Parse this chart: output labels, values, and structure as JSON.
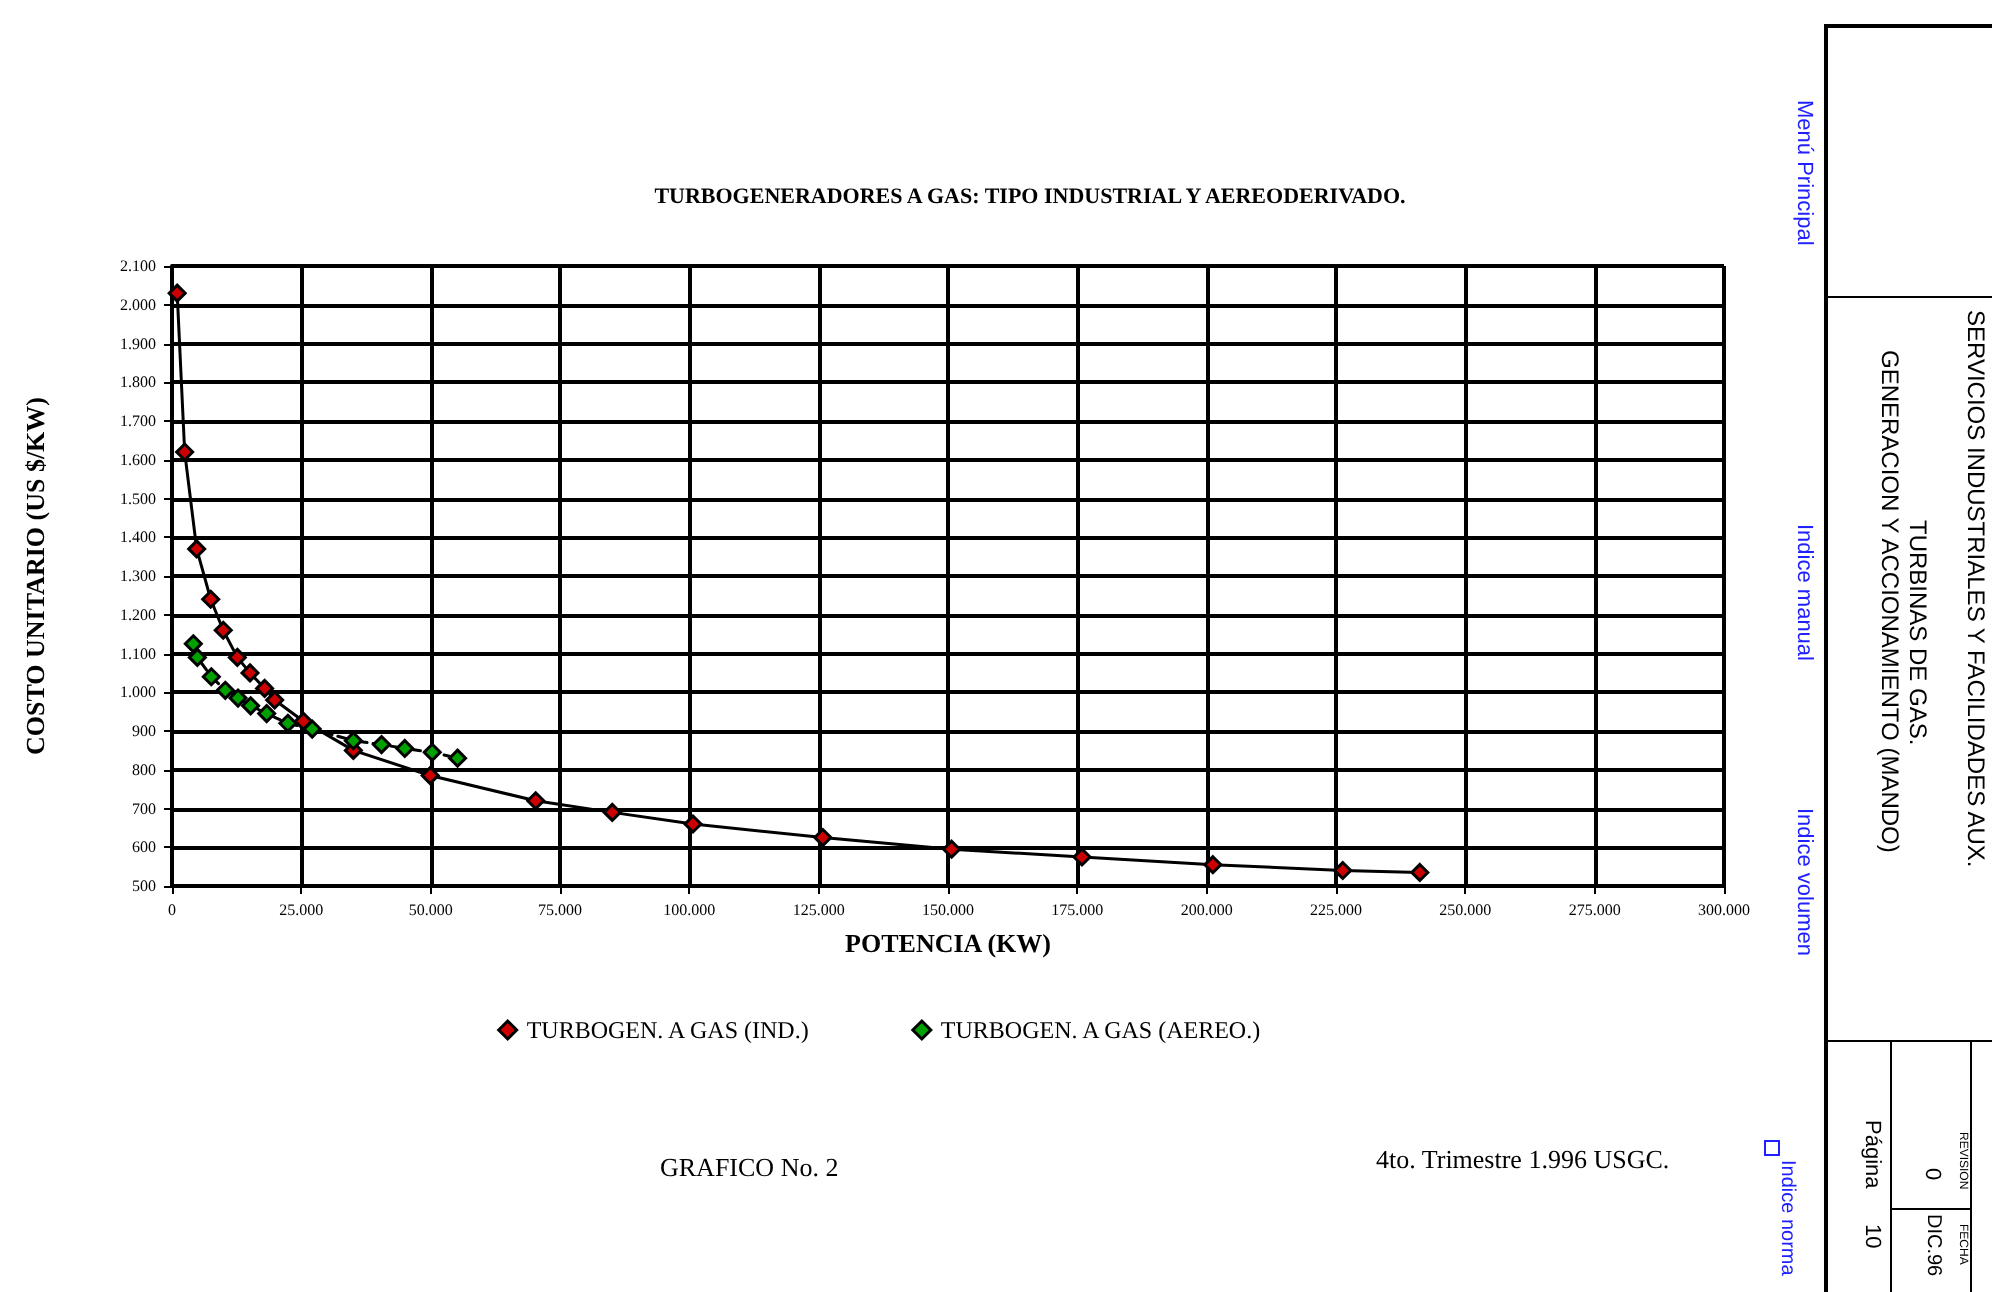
{
  "chart_data": {
    "type": "line",
    "title": "TURBOGENERADORES A GAS: TIPO INDUSTRIAL Y AEREODERIVADO.",
    "xlabel": "POTENCIA (KW)",
    "ylabel": "COSTO UNITARIO (US $/KW)",
    "xlim": [
      0,
      300000
    ],
    "xticks": [
      {
        "value": 0,
        "label": "0"
      },
      {
        "value": 25000,
        "label": "25.000"
      },
      {
        "value": 50000,
        "label": "50.000"
      },
      {
        "value": 75000,
        "label": "75.000"
      },
      {
        "value": 100000,
        "label": "100.000"
      },
      {
        "value": 125000,
        "label": "125.000"
      },
      {
        "value": 150000,
        "label": "150.000"
      },
      {
        "value": 175000,
        "label": "175.000"
      },
      {
        "value": 200000,
        "label": "200.000"
      },
      {
        "value": 225000,
        "label": "225.000"
      },
      {
        "value": 250000,
        "label": "250.000"
      },
      {
        "value": 275000,
        "label": "275.000"
      },
      {
        "value": 300000,
        "label": "300.000"
      }
    ],
    "ylim": [
      500,
      2100
    ],
    "yticks": [
      500,
      600,
      700,
      800,
      900,
      {
        "value": 1000,
        "label": "1.000"
      },
      {
        "value": 1100,
        "label": "1.100"
      },
      {
        "value": 1200,
        "label": "1.200"
      },
      {
        "value": 1300,
        "label": "1.300"
      },
      {
        "value": 1400,
        "label": "1.400"
      },
      {
        "value": 1500,
        "label": "1.500"
      },
      {
        "value": 1600,
        "label": "1.600"
      },
      {
        "value": 1700,
        "label": "1.700"
      },
      {
        "value": 1800,
        "label": "1.800"
      },
      {
        "value": 1900,
        "label": "1.900"
      },
      {
        "value": 2000,
        "label": "2.000"
      },
      {
        "value": 2100,
        "label": "2.100"
      }
    ],
    "grid": true,
    "legend": "bottom",
    "marker": "diamond",
    "series": [
      {
        "name": "TURBOGEN. A GAS (IND.)",
        "color": "#cc0000",
        "line_style": "solid",
        "x": [
          1000,
          2450,
          4770,
          7480,
          9900,
          12630,
          15080,
          17900,
          19850,
          25400,
          35060,
          49900,
          70300,
          85100,
          100700,
          125800,
          150700,
          175900,
          201200,
          226300,
          241200
        ],
        "values": [
          2030,
          1620,
          1370,
          1240,
          1160,
          1090,
          1050,
          1010,
          980,
          925,
          850,
          785,
          720,
          690,
          660,
          625,
          595,
          575,
          555,
          540,
          535
        ]
      },
      {
        "name": "TURBOGEN. A GAS (AEREO.)",
        "color": "#00a000",
        "line_style": "dashed",
        "x": [
          4120,
          4900,
          7600,
          10300,
          12760,
          15200,
          18300,
          22400,
          27100,
          35060,
          40500,
          45000,
          50300,
          55200
        ],
        "values": [
          1125,
          1090,
          1040,
          1005,
          985,
          965,
          945,
          920,
          905,
          875,
          865,
          855,
          845,
          830
        ]
      }
    ],
    "annotations": [
      "GRAFICO No. 2",
      "4to. Trimestre 1.996 USGC.",
      "Menú Principal",
      "Indice manual",
      "Indice volumen",
      "Indice norma",
      "SERVICIOS INDUSTRIALES Y FACILIDADES AUX.",
      "TURBINAS DE GAS.",
      "GENERACION Y ACCIONAMIENTO (MANDO)",
      "REVISION",
      "0",
      "FECHA",
      "DIC.96",
      "Página",
      "10"
    ]
  }
}
